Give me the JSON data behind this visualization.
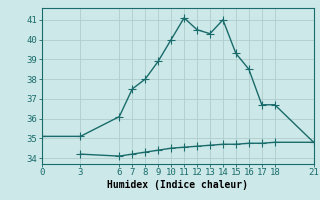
{
  "xlabel": "Humidex (Indice chaleur)",
  "bg_color": "#cce8e8",
  "grid_major_color": "#b0cccc",
  "grid_minor_color": "#c4dddd",
  "line_color": "#1a6b6b",
  "line1_x": [
    0,
    3,
    6,
    7,
    8,
    9,
    10,
    11,
    12,
    13,
    14,
    15,
    16,
    17,
    18,
    21
  ],
  "line1_y": [
    35.1,
    35.1,
    36.1,
    37.5,
    38.0,
    38.9,
    40.0,
    41.1,
    40.5,
    40.3,
    41.0,
    39.3,
    38.5,
    36.7,
    36.7,
    34.8
  ],
  "line2_x": [
    3,
    6,
    7,
    8,
    9,
    10,
    11,
    12,
    13,
    14,
    15,
    16,
    17,
    18,
    21
  ],
  "line2_y": [
    34.2,
    34.1,
    34.2,
    34.3,
    34.4,
    34.5,
    34.55,
    34.6,
    34.65,
    34.7,
    34.7,
    34.75,
    34.75,
    34.8,
    34.8
  ],
  "xticks": [
    0,
    3,
    6,
    7,
    8,
    9,
    10,
    11,
    12,
    13,
    14,
    15,
    16,
    17,
    18,
    21
  ],
  "yticks": [
    34,
    35,
    36,
    37,
    38,
    39,
    40,
    41
  ],
  "xlim": [
    0,
    21
  ],
  "ylim": [
    33.7,
    41.6
  ],
  "xlabel_fontsize": 7,
  "tick_fontsize": 6.5,
  "marker_size": 2.5,
  "line_width": 1.0
}
